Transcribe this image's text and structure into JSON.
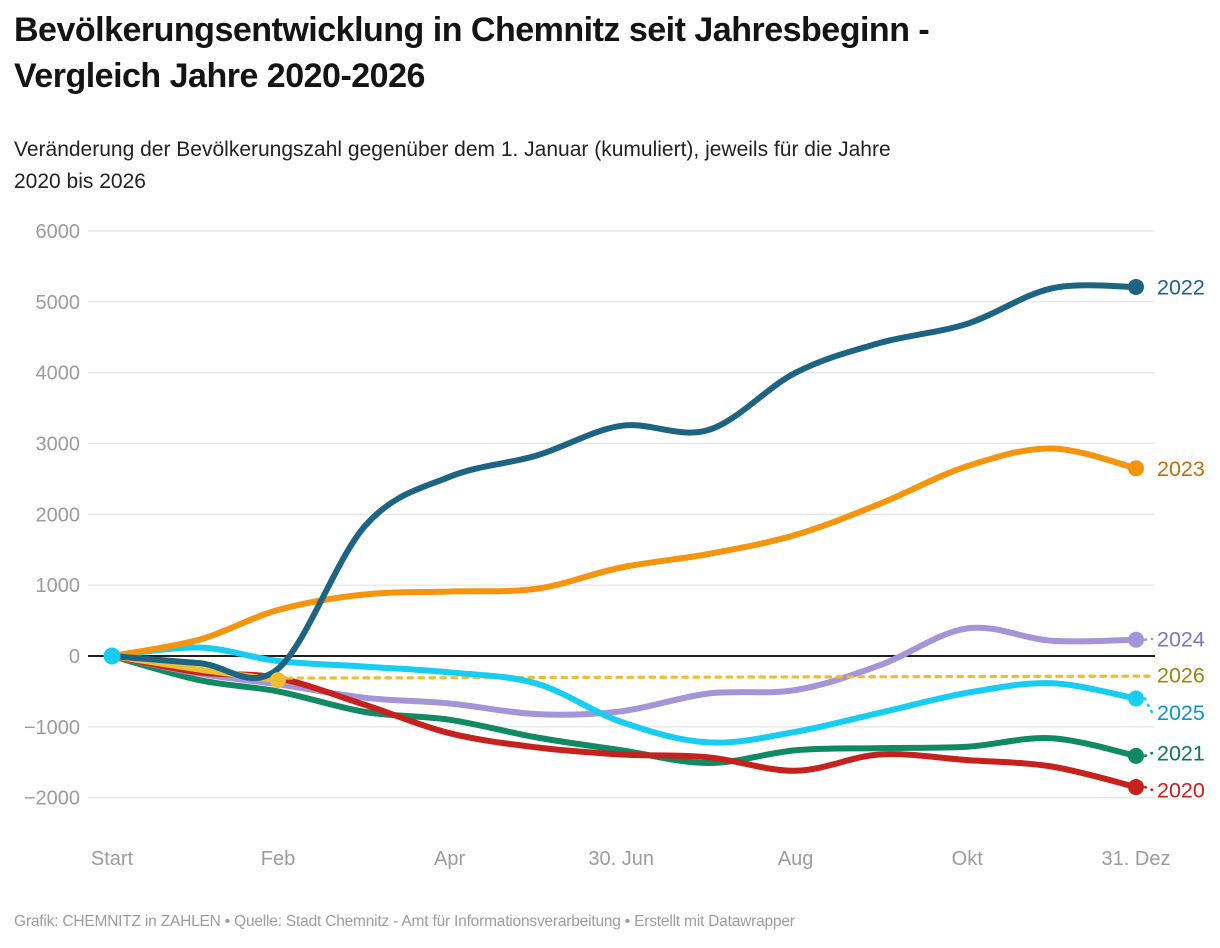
{
  "chart_data": {
    "type": "line",
    "title": "Bevölkerungsentwicklung in Chemnitz seit Jahresbeginn -\nVergleich Jahre 2020-2026",
    "subtitle": "Veränderung der Bevölkerungszahl gegenüber dem 1. Januar (kumuliert), jeweils für die Jahre\n2020 bis 2026",
    "footer": "Grafik: CHEMNITZ in ZAHLEN • Quelle: Stadt Chemnitz - Amt für Informationsverarbeitung • Erstellt mit Datawrapper",
    "ylabel": "",
    "xlabel": "",
    "ylim": [
      -2000,
      6000
    ],
    "grid": true,
    "legend_position": "right-edge-labels",
    "colors": {
      "grid": "#e8e8e8",
      "zero_line": "#000000",
      "axis_text": "#9c9c9c"
    },
    "y_ticks": [
      {
        "v": 6000,
        "label": "6000"
      },
      {
        "v": 5000,
        "label": "5000"
      },
      {
        "v": 4000,
        "label": "4000"
      },
      {
        "v": 3000,
        "label": "3000"
      },
      {
        "v": 2000,
        "label": "2000"
      },
      {
        "v": 1000,
        "label": "1000"
      },
      {
        "v": 0,
        "label": "0"
      },
      {
        "v": -1000,
        "label": "−1000"
      },
      {
        "v": -2000,
        "label": "−2000"
      }
    ],
    "x_ticks": [
      {
        "day": 0,
        "label": "Start"
      },
      {
        "day": 59,
        "label": "Feb"
      },
      {
        "day": 120,
        "label": "Apr"
      },
      {
        "day": 181,
        "label": "30. Jun"
      },
      {
        "day": 243,
        "label": "Aug"
      },
      {
        "day": 304,
        "label": "Okt"
      },
      {
        "day": 364,
        "label": "31. Dez"
      }
    ],
    "month_end_days": [
      0,
      31,
      59,
      90,
      120,
      151,
      181,
      212,
      243,
      273,
      304,
      334,
      364
    ],
    "series": [
      {
        "name": "2021",
        "color": "#0f8a62",
        "label_color": "#0c7a55",
        "stub": true,
        "values": [
          0,
          -340,
          -500,
          -790,
          -900,
          -1150,
          -1330,
          -1510,
          -1330,
          -1300,
          -1280,
          -1160,
          -1410
        ],
        "label_value": -1370
      },
      {
        "name": "2024",
        "color": "#a495d8",
        "label_color": "#8472c5",
        "stub": true,
        "values": [
          0,
          -250,
          -400,
          -590,
          -670,
          -820,
          -780,
          -530,
          -480,
          -130,
          390,
          215,
          230
        ],
        "label_value": 240
      },
      {
        "name": "2020",
        "color": "#c7211e",
        "label_color": "#c7211e",
        "stub": true,
        "values": [
          0,
          -230,
          -310,
          -690,
          -1090,
          -1290,
          -1390,
          -1430,
          -1620,
          -1390,
          -1470,
          -1560,
          -1850
        ],
        "label_value": -1890
      },
      {
        "name": "2026",
        "color": "#eebe31",
        "label_color": "#9c8412",
        "connector": true,
        "days": [
          0,
          31,
          59
        ],
        "values": [
          0,
          -190,
          -340
        ],
        "label_value": -270
      },
      {
        "name": "2025",
        "color": "#18cdf2",
        "label_color": "#0d96c2",
        "stub": true,
        "start_dot": true,
        "values": [
          0,
          120,
          -70,
          -150,
          -230,
          -390,
          -930,
          -1220,
          -1070,
          -800,
          -520,
          -385,
          -600
        ],
        "label_value": -800
      },
      {
        "name": "2023",
        "color": "#f7940d",
        "label_color": "#c06f0b",
        "values": [
          0,
          230,
          650,
          870,
          910,
          950,
          1250,
          1440,
          1710,
          2150,
          2680,
          2930,
          2650
        ],
        "label_value": 2650
      },
      {
        "name": "2022",
        "color": "#1d6483",
        "label_color": "#1d6483",
        "values": [
          0,
          -100,
          -180,
          1840,
          2530,
          2830,
          3250,
          3190,
          4000,
          4420,
          4690,
          5190,
          5210
        ],
        "label_value": 5210
      }
    ]
  }
}
